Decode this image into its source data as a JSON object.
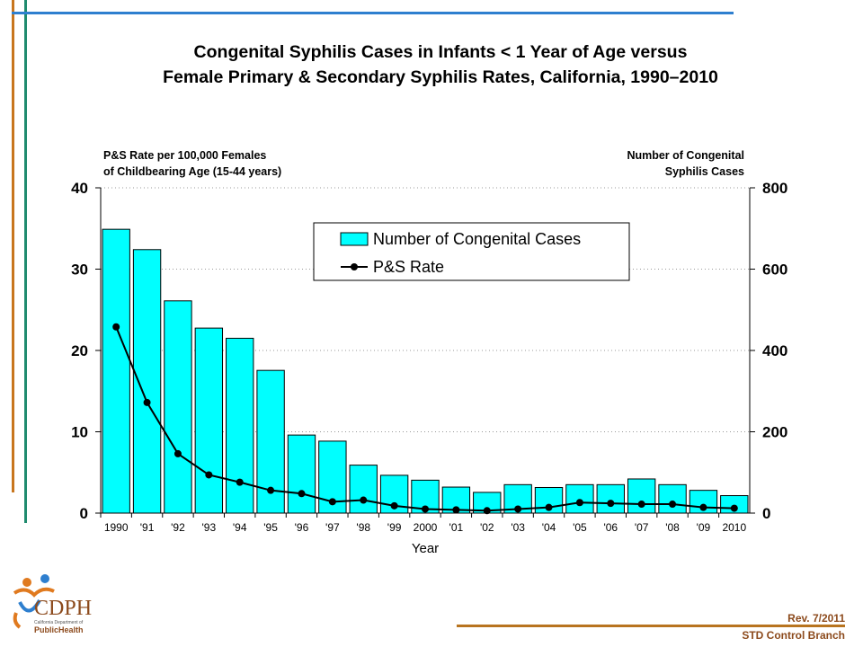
{
  "slide": {
    "title_line1": "Congenital Syphilis Cases in Infants < 1 Year of Age versus",
    "title_line2": "Female Primary & Secondary Syphilis Rates, California, 1990–2010",
    "footer_rev": "Rev. 7/2011",
    "footer_branch": "STD Control Branch",
    "logo_text": "CDPH",
    "logo_sub1": "California Department of",
    "logo_sub2": "PublicHealth",
    "accent_colors": {
      "orange": "#c8761e",
      "teal": "#1f8b6e",
      "blue": "#2e7fcf",
      "brown": "#8c4a1c"
    }
  },
  "chart_data": {
    "type": "bar+line",
    "categories": [
      "1990",
      "'91",
      "'92",
      "'93",
      "'94",
      "'95",
      "'96",
      "'97",
      "'98",
      "'99",
      "2000",
      "'01",
      "'02",
      "'03",
      "'04",
      "'05",
      "'06",
      "'07",
      "'08",
      "'09",
      "2010"
    ],
    "left_axis_label_line1": "P&S Rate per 100,000 Females",
    "left_axis_label_line2": "of Childbearing Age (15-44 years)",
    "right_axis_label_line1": "Number of  Congenital",
    "right_axis_label_line2": "Syphilis Cases",
    "xlabel": "Year",
    "left_ylim": [
      0,
      40
    ],
    "left_ticks": [
      "0",
      "10",
      "20",
      "30",
      "40"
    ],
    "right_ylim": [
      0,
      800
    ],
    "right_ticks": [
      "0",
      "200",
      "400",
      "600",
      "800"
    ],
    "grid": "horizontal dotted",
    "legend_position": "top-center",
    "series": [
      {
        "name": "Number of Congenital Cases",
        "type": "bar",
        "axis": "right",
        "color": "#00ffff",
        "values": [
          698,
          648,
          522,
          455,
          430,
          351,
          192,
          177,
          118,
          93,
          81,
          64,
          51,
          70,
          63,
          70,
          70,
          84,
          70,
          56,
          43
        ]
      },
      {
        "name": "P&S Rate",
        "type": "line",
        "axis": "left",
        "color": "#000000",
        "values": [
          22.9,
          13.6,
          7.3,
          4.7,
          3.8,
          2.8,
          2.4,
          1.4,
          1.6,
          0.9,
          0.5,
          0.4,
          0.3,
          0.5,
          0.7,
          1.3,
          1.2,
          1.1,
          1.1,
          0.7,
          0.6
        ]
      }
    ]
  }
}
